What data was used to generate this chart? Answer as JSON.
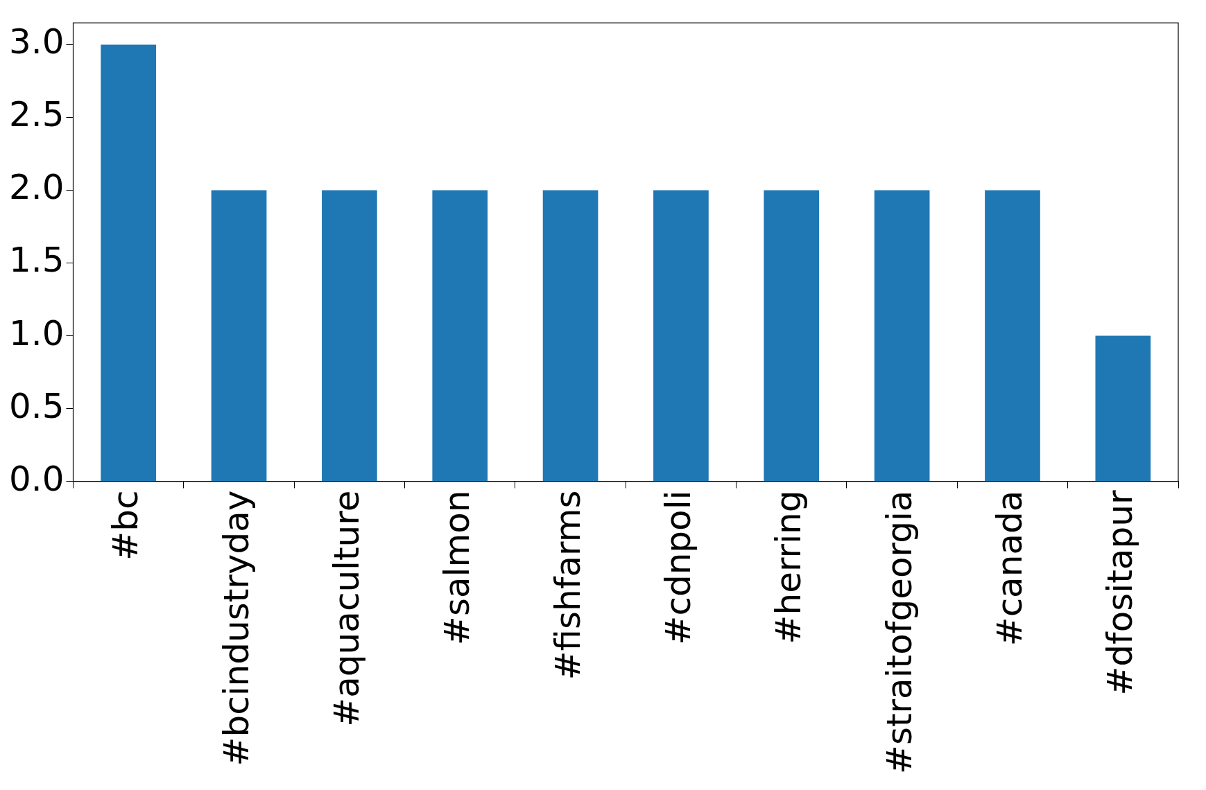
{
  "chart_data": {
    "type": "bar",
    "categories": [
      "#bc",
      "#bcindustryday",
      "#aquaculture",
      "#salmon",
      "#fishfarms",
      "#cdnpoli",
      "#herring",
      "#straitofgeorgia",
      "#canada",
      "#dfositapur"
    ],
    "values": [
      3,
      2,
      2,
      2,
      2,
      2,
      2,
      2,
      2,
      1
    ],
    "color": "#1f77b4",
    "ylim": [
      0,
      3.15
    ],
    "yticks": [
      {
        "value": 0,
        "label": "0.0"
      },
      {
        "value": 0.5,
        "label": "0.5"
      },
      {
        "value": 1,
        "label": "1.0"
      },
      {
        "value": 1.5,
        "label": "1.5"
      },
      {
        "value": 2,
        "label": "2.0"
      },
      {
        "value": 2.5,
        "label": "2.5"
      },
      {
        "value": 3,
        "label": "3.0"
      }
    ],
    "grid": false,
    "legend": false
  }
}
